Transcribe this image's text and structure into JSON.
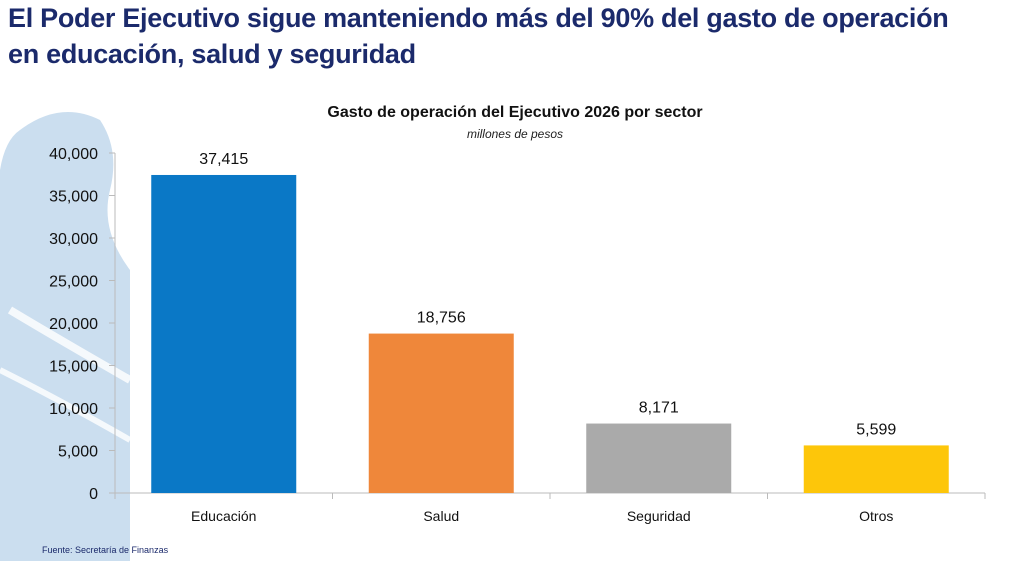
{
  "headline": {
    "line1": "El Poder Ejecutivo sigue manteniendo más del 90% del gasto de operación",
    "line2": "en educación, salud y seguridad"
  },
  "source": "Fuente: Secretaría de Finanzas",
  "chart_data": {
    "type": "bar",
    "title": "Gasto de operación del Ejecutivo 2026 por sector",
    "subtitle": "millones de pesos",
    "categories": [
      "Educación",
      "Salud",
      "Seguridad",
      "Otros"
    ],
    "values": [
      37415,
      18756,
      8171,
      5599
    ],
    "data_labels": [
      "37,415",
      "18,756",
      "8,171",
      "5,599"
    ],
    "colors": [
      "#0a78c6",
      "#ef873a",
      "#aaaaaa",
      "#fdc60a"
    ],
    "ylim": [
      0,
      40000
    ],
    "yticks": [
      0,
      5000,
      10000,
      15000,
      20000,
      25000,
      30000,
      35000,
      40000
    ],
    "ytick_labels": [
      "0",
      "5,000",
      "10,000",
      "15,000",
      "20,000",
      "25,000",
      "30,000",
      "35,000",
      "40,000"
    ],
    "xlabel": "",
    "ylabel": "",
    "grid": false,
    "legend": "none"
  }
}
